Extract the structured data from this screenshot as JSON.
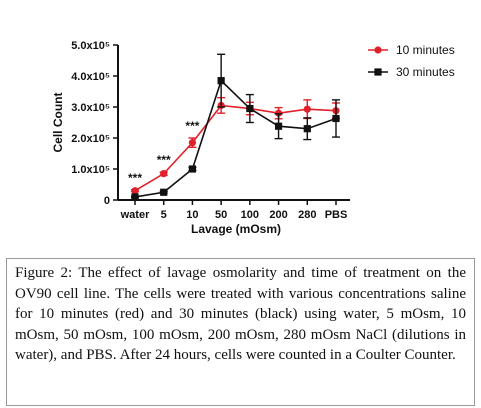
{
  "chart_data": {
    "type": "line",
    "categories": [
      "water",
      "5",
      "10",
      "50",
      "100",
      "200",
      "280",
      "PBS"
    ],
    "xlabel": "Lavage (mOsm)",
    "ylabel": "Cell Count",
    "ylim": [
      0,
      500000
    ],
    "yticks": [
      0,
      100000,
      200000,
      300000,
      400000,
      500000
    ],
    "ytick_labels": [
      "0",
      "1.0x10⁵",
      "2.0x10⁵",
      "3.0x10⁵",
      "4.0x10⁵",
      "5.0x10⁵"
    ],
    "grid": false,
    "legend_position": "top-right",
    "series": [
      {
        "name": "10 minutes",
        "color": "#e0202a",
        "marker": "circle",
        "values": [
          30000,
          85000,
          185000,
          305000,
          295000,
          280000,
          293000,
          288000
        ],
        "errors": [
          3000,
          5000,
          15000,
          25000,
          20000,
          18000,
          30000,
          25000
        ]
      },
      {
        "name": "30 minutes",
        "color": "#111111",
        "marker": "square",
        "values": [
          10000,
          25000,
          100000,
          385000,
          295000,
          238000,
          230000,
          263000
        ],
        "errors": [
          2000,
          3000,
          5000,
          85000,
          45000,
          40000,
          35000,
          60000
        ]
      }
    ],
    "annotations": [
      {
        "category": "water",
        "text": "***"
      },
      {
        "category": "5",
        "text": "***"
      },
      {
        "category": "10",
        "text": "***"
      }
    ]
  },
  "caption": {
    "label": "Figure 2:",
    "text": "The effect of lavage osmolarity and time of treatment on the OV90 cell line. The cells were treated with various concentrations saline for 10 minutes (red) and 30 minutes (black) using water, 5 mOsm, 10 mOsm, 50 mOsm, 100 mOsm, 200 mOsm, 280 mOsm NaCl (dilutions in water), and PBS. After 24 hours, cells were counted in a Coulter Counter."
  }
}
